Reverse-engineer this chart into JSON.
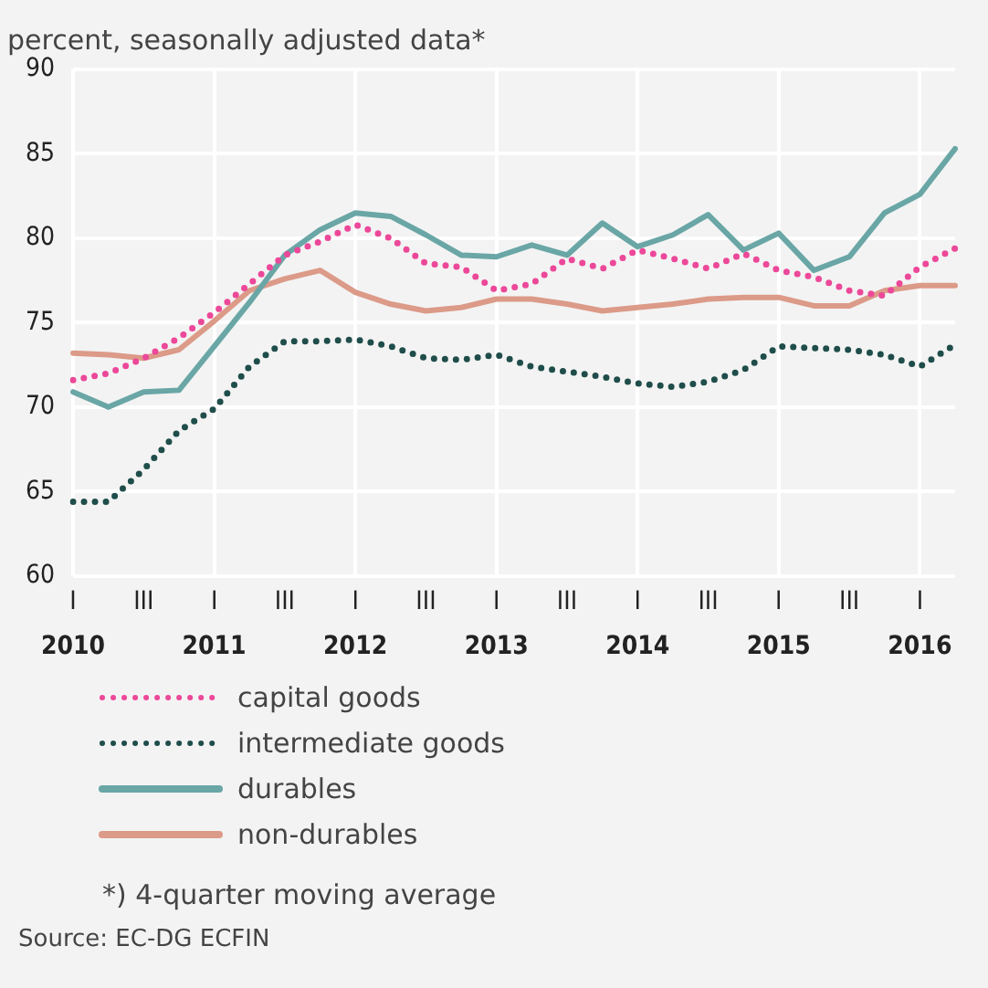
{
  "chart_data": {
    "type": "line",
    "subtitle": "percent, seasonally adjusted data*",
    "categories": [
      "I",
      null,
      "III",
      null,
      "I",
      null,
      "III",
      null,
      "I",
      null,
      "III",
      null,
      "I",
      null,
      "III",
      null,
      "I",
      null,
      "III",
      null,
      "I",
      null,
      "III",
      null,
      "I",
      null
    ],
    "x2lim": [
      2010,
      2016.25
    ],
    "x2ticks": [
      2010,
      2011,
      2012,
      2013,
      2014,
      2015,
      2016
    ],
    "ylim": [
      60,
      90
    ],
    "yticks": [
      60,
      65,
      70,
      75,
      80,
      85,
      90
    ],
    "grid": true,
    "legend": "bottom",
    "marker": "none",
    "series": [
      {
        "name": "capital goods",
        "color": "#ec4899",
        "line_style": "dotted",
        "values": [
          71.6,
          72.0,
          72.9,
          74.1,
          75.6,
          77.3,
          79.0,
          79.8,
          80.8,
          80.0,
          78.5,
          78.3,
          76.9,
          77.3,
          78.8,
          78.2,
          79.3,
          78.8,
          78.2,
          79.1,
          78.1,
          77.7,
          76.9,
          76.6,
          78.3,
          79.4
        ]
      },
      {
        "name": "intermediate goods",
        "color": "#1f4d4a",
        "line_style": "dotted",
        "values": [
          64.4,
          64.4,
          66.3,
          68.6,
          69.9,
          72.4,
          73.9,
          73.9,
          74.0,
          73.6,
          72.9,
          72.8,
          73.1,
          72.4,
          72.1,
          71.8,
          71.4,
          71.2,
          71.5,
          72.2,
          73.6,
          73.5,
          73.4,
          73.1,
          72.4,
          73.7
        ]
      },
      {
        "name": "durables",
        "color": "#6aa6a6",
        "line_style": "solid",
        "values": [
          70.9,
          70.0,
          70.9,
          71.0,
          73.6,
          76.2,
          79.0,
          80.5,
          81.5,
          81.3,
          80.2,
          79.0,
          78.9,
          79.6,
          79.0,
          80.9,
          79.5,
          80.2,
          81.4,
          79.3,
          80.3,
          78.1,
          78.9,
          81.5,
          82.6,
          85.3
        ]
      },
      {
        "name": "non-durables",
        "color": "#dc9a88",
        "line_style": "solid",
        "values": [
          73.2,
          73.1,
          72.9,
          73.4,
          75.1,
          76.9,
          77.6,
          78.1,
          76.8,
          76.1,
          75.7,
          75.9,
          76.4,
          76.4,
          76.1,
          75.7,
          75.9,
          76.1,
          76.4,
          76.5,
          76.5,
          76.0,
          76.0,
          76.9,
          77.2,
          77.2
        ]
      }
    ],
    "annotations": [
      "*) 4-quarter moving average",
      "Source: EC-DG ECFIN"
    ]
  }
}
